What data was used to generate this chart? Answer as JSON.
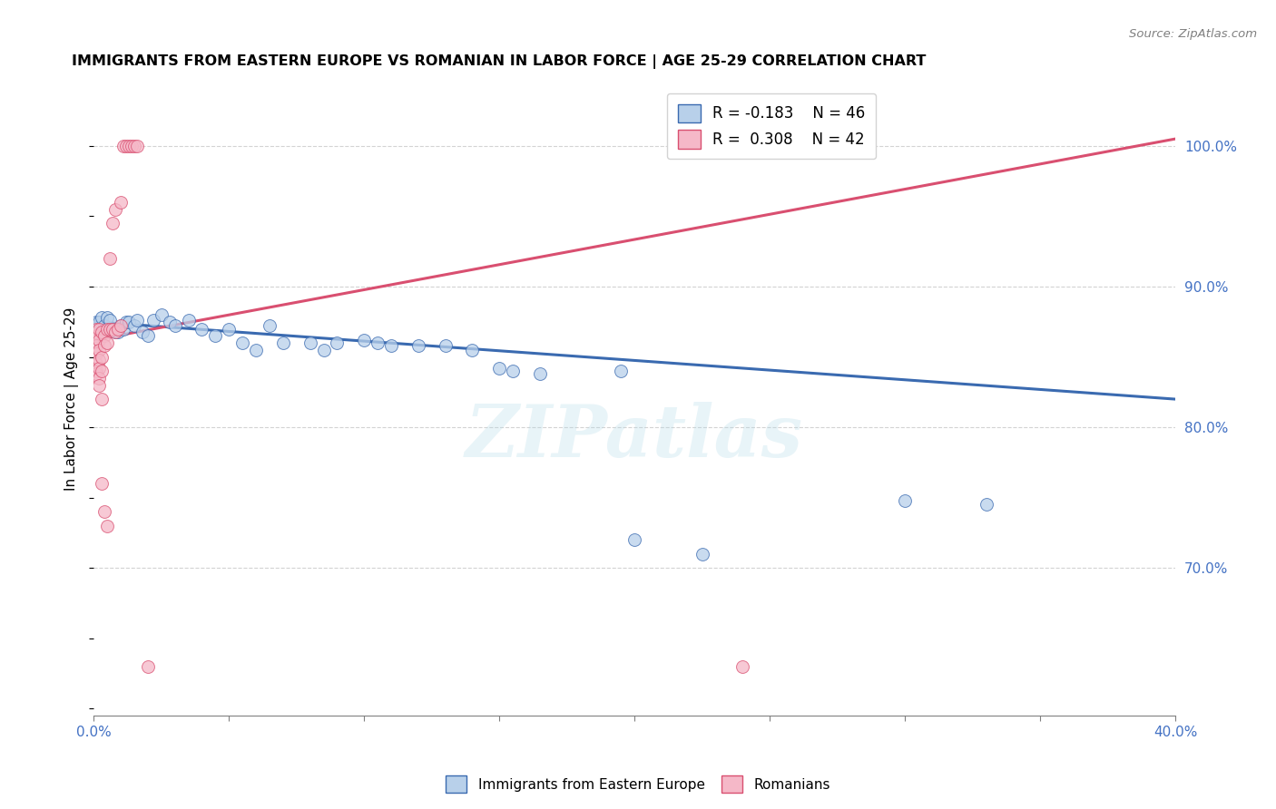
{
  "title": "IMMIGRANTS FROM EASTERN EUROPE VS ROMANIAN IN LABOR FORCE | AGE 25-29 CORRELATION CHART",
  "source": "Source: ZipAtlas.com",
  "legend_blue_r": "R = -0.183",
  "legend_blue_n": "N = 46",
  "legend_pink_r": "R = 0.308",
  "legend_pink_n": "N = 42",
  "blue_color": "#b8d0ea",
  "pink_color": "#f5b8c8",
  "blue_line_color": "#3a6ab0",
  "pink_line_color": "#d94f70",
  "watermark": "ZIPatlas",
  "ylabel": "In Labor Force | Age 25-29",
  "blue_dots": [
    [
      0.001,
      0.875
    ],
    [
      0.002,
      0.875
    ],
    [
      0.003,
      0.878
    ],
    [
      0.004,
      0.872
    ],
    [
      0.005,
      0.878
    ],
    [
      0.006,
      0.876
    ],
    [
      0.007,
      0.87
    ],
    [
      0.008,
      0.868
    ],
    [
      0.009,
      0.868
    ],
    [
      0.01,
      0.872
    ],
    [
      0.011,
      0.87
    ],
    [
      0.012,
      0.875
    ],
    [
      0.013,
      0.875
    ],
    [
      0.015,
      0.872
    ],
    [
      0.016,
      0.876
    ],
    [
      0.018,
      0.868
    ],
    [
      0.02,
      0.865
    ],
    [
      0.022,
      0.876
    ],
    [
      0.025,
      0.88
    ],
    [
      0.028,
      0.875
    ],
    [
      0.03,
      0.872
    ],
    [
      0.035,
      0.876
    ],
    [
      0.04,
      0.87
    ],
    [
      0.045,
      0.865
    ],
    [
      0.05,
      0.87
    ],
    [
      0.055,
      0.86
    ],
    [
      0.06,
      0.855
    ],
    [
      0.065,
      0.872
    ],
    [
      0.07,
      0.86
    ],
    [
      0.08,
      0.86
    ],
    [
      0.085,
      0.855
    ],
    [
      0.09,
      0.86
    ],
    [
      0.1,
      0.862
    ],
    [
      0.105,
      0.86
    ],
    [
      0.11,
      0.858
    ],
    [
      0.12,
      0.858
    ],
    [
      0.13,
      0.858
    ],
    [
      0.14,
      0.855
    ],
    [
      0.15,
      0.842
    ],
    [
      0.155,
      0.84
    ],
    [
      0.165,
      0.838
    ],
    [
      0.195,
      0.84
    ],
    [
      0.2,
      0.72
    ],
    [
      0.225,
      0.71
    ],
    [
      0.3,
      0.748
    ],
    [
      0.33,
      0.745
    ]
  ],
  "pink_dots": [
    [
      0.001,
      0.87
    ],
    [
      0.001,
      0.865
    ],
    [
      0.001,
      0.858
    ],
    [
      0.001,
      0.852
    ],
    [
      0.001,
      0.845
    ],
    [
      0.001,
      0.84
    ],
    [
      0.001,
      0.838
    ],
    [
      0.002,
      0.87
    ],
    [
      0.002,
      0.862
    ],
    [
      0.002,
      0.855
    ],
    [
      0.002,
      0.848
    ],
    [
      0.002,
      0.842
    ],
    [
      0.002,
      0.835
    ],
    [
      0.002,
      0.83
    ],
    [
      0.003,
      0.868
    ],
    [
      0.003,
      0.85
    ],
    [
      0.003,
      0.84
    ],
    [
      0.003,
      0.82
    ],
    [
      0.003,
      0.76
    ],
    [
      0.004,
      0.865
    ],
    [
      0.004,
      0.858
    ],
    [
      0.004,
      0.74
    ],
    [
      0.005,
      0.87
    ],
    [
      0.005,
      0.86
    ],
    [
      0.005,
      0.73
    ],
    [
      0.006,
      0.92
    ],
    [
      0.006,
      0.87
    ],
    [
      0.007,
      0.945
    ],
    [
      0.007,
      0.87
    ],
    [
      0.008,
      0.955
    ],
    [
      0.008,
      0.868
    ],
    [
      0.009,
      0.87
    ],
    [
      0.01,
      0.96
    ],
    [
      0.01,
      0.872
    ],
    [
      0.011,
      1.0
    ],
    [
      0.012,
      1.0
    ],
    [
      0.013,
      1.0
    ],
    [
      0.014,
      1.0
    ],
    [
      0.015,
      1.0
    ],
    [
      0.016,
      1.0
    ],
    [
      0.02,
      0.63
    ],
    [
      0.24,
      0.63
    ]
  ],
  "xmin": 0.0,
  "xmax": 0.4,
  "ymin": 0.595,
  "ymax": 1.045,
  "y_ticks": [
    0.7,
    0.8,
    0.9,
    1.0
  ],
  "y_tick_labels": [
    "70.0%",
    "80.0%",
    "90.0%",
    "100.0%"
  ],
  "x_ticks": [
    0.0,
    0.05,
    0.1,
    0.15,
    0.2,
    0.25,
    0.3,
    0.35,
    0.4
  ],
  "x_tick_labels": [
    "0.0%",
    "",
    "",
    "",
    "",
    "",
    "",
    "",
    "40.0%"
  ]
}
